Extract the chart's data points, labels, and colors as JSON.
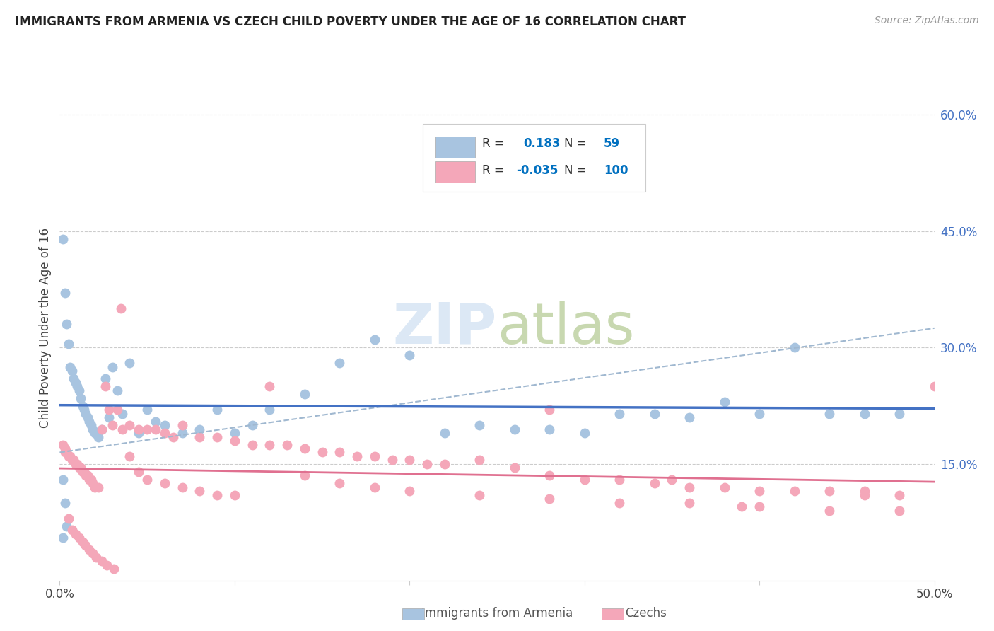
{
  "title": "IMMIGRANTS FROM ARMENIA VS CZECH CHILD POVERTY UNDER THE AGE OF 16 CORRELATION CHART",
  "source": "Source: ZipAtlas.com",
  "ylabel": "Child Poverty Under the Age of 16",
  "xlim": [
    0.0,
    0.5
  ],
  "ylim": [
    0.0,
    0.65
  ],
  "xtick_vals": [
    0.0,
    0.1,
    0.2,
    0.3,
    0.4,
    0.5
  ],
  "xticklabels": [
    "0.0%",
    "",
    "",
    "",
    "",
    "50.0%"
  ],
  "ytick_right_labels": [
    "60.0%",
    "45.0%",
    "30.0%",
    "15.0%"
  ],
  "ytick_right_values": [
    0.6,
    0.45,
    0.3,
    0.15
  ],
  "armenia_color": "#a8c4e0",
  "czech_color": "#f4a7b9",
  "arm_line_color": "#4472c4",
  "cze_line_color": "#e07090",
  "dash_line_color": "#a0b8d0",
  "legend_val_color": "#0070c0",
  "watermark_color": "#dce8f5",
  "background_color": "#ffffff",
  "armenia_R": 0.183,
  "armenia_N": 59,
  "czech_R": -0.035,
  "czech_N": 100,
  "arm_x": [
    0.002,
    0.003,
    0.004,
    0.005,
    0.006,
    0.007,
    0.008,
    0.009,
    0.01,
    0.011,
    0.012,
    0.013,
    0.014,
    0.015,
    0.016,
    0.017,
    0.018,
    0.019,
    0.02,
    0.022,
    0.024,
    0.026,
    0.028,
    0.03,
    0.033,
    0.036,
    0.04,
    0.045,
    0.05,
    0.055,
    0.06,
    0.07,
    0.08,
    0.09,
    0.1,
    0.11,
    0.12,
    0.14,
    0.16,
    0.18,
    0.2,
    0.22,
    0.24,
    0.26,
    0.28,
    0.3,
    0.32,
    0.34,
    0.36,
    0.38,
    0.4,
    0.42,
    0.44,
    0.46,
    0.48,
    0.002,
    0.003,
    0.004,
    0.002
  ],
  "arm_y": [
    0.44,
    0.37,
    0.33,
    0.305,
    0.275,
    0.27,
    0.26,
    0.255,
    0.25,
    0.245,
    0.235,
    0.225,
    0.22,
    0.215,
    0.21,
    0.205,
    0.2,
    0.195,
    0.19,
    0.185,
    0.195,
    0.26,
    0.21,
    0.275,
    0.245,
    0.215,
    0.28,
    0.19,
    0.22,
    0.205,
    0.2,
    0.19,
    0.195,
    0.22,
    0.19,
    0.2,
    0.22,
    0.24,
    0.28,
    0.31,
    0.29,
    0.19,
    0.2,
    0.195,
    0.195,
    0.19,
    0.215,
    0.215,
    0.21,
    0.23,
    0.215,
    0.3,
    0.215,
    0.215,
    0.215,
    0.13,
    0.1,
    0.07,
    0.055
  ],
  "cze_x": [
    0.002,
    0.003,
    0.004,
    0.005,
    0.006,
    0.007,
    0.008,
    0.009,
    0.01,
    0.011,
    0.012,
    0.013,
    0.014,
    0.015,
    0.016,
    0.017,
    0.018,
    0.019,
    0.02,
    0.022,
    0.024,
    0.026,
    0.028,
    0.03,
    0.033,
    0.036,
    0.04,
    0.045,
    0.05,
    0.055,
    0.06,
    0.065,
    0.07,
    0.08,
    0.09,
    0.1,
    0.11,
    0.12,
    0.13,
    0.14,
    0.15,
    0.16,
    0.17,
    0.18,
    0.19,
    0.2,
    0.21,
    0.22,
    0.24,
    0.26,
    0.28,
    0.3,
    0.32,
    0.34,
    0.36,
    0.38,
    0.4,
    0.42,
    0.44,
    0.46,
    0.48,
    0.5,
    0.003,
    0.005,
    0.007,
    0.009,
    0.011,
    0.013,
    0.015,
    0.017,
    0.019,
    0.021,
    0.024,
    0.027,
    0.031,
    0.035,
    0.04,
    0.045,
    0.05,
    0.06,
    0.07,
    0.08,
    0.09,
    0.1,
    0.12,
    0.14,
    0.16,
    0.18,
    0.2,
    0.24,
    0.28,
    0.32,
    0.36,
    0.4,
    0.44,
    0.48,
    0.35,
    0.28,
    0.46,
    0.39
  ],
  "cze_y": [
    0.175,
    0.17,
    0.165,
    0.16,
    0.16,
    0.155,
    0.155,
    0.15,
    0.15,
    0.145,
    0.145,
    0.14,
    0.14,
    0.135,
    0.135,
    0.13,
    0.13,
    0.125,
    0.12,
    0.12,
    0.195,
    0.25,
    0.22,
    0.2,
    0.22,
    0.195,
    0.2,
    0.195,
    0.195,
    0.195,
    0.19,
    0.185,
    0.2,
    0.185,
    0.185,
    0.18,
    0.175,
    0.175,
    0.175,
    0.17,
    0.165,
    0.165,
    0.16,
    0.16,
    0.155,
    0.155,
    0.15,
    0.15,
    0.155,
    0.145,
    0.135,
    0.13,
    0.13,
    0.125,
    0.12,
    0.12,
    0.115,
    0.115,
    0.115,
    0.11,
    0.11,
    0.25,
    0.165,
    0.08,
    0.065,
    0.06,
    0.055,
    0.05,
    0.045,
    0.04,
    0.035,
    0.03,
    0.025,
    0.02,
    0.015,
    0.35,
    0.16,
    0.14,
    0.13,
    0.125,
    0.12,
    0.115,
    0.11,
    0.11,
    0.25,
    0.135,
    0.125,
    0.12,
    0.115,
    0.11,
    0.105,
    0.1,
    0.1,
    0.095,
    0.09,
    0.09,
    0.13,
    0.22,
    0.115,
    0.095
  ]
}
